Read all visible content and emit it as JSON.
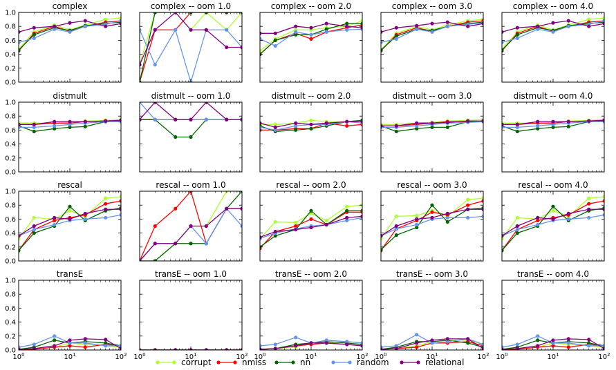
{
  "figure": {
    "legend": [
      {
        "label": "corrupt",
        "color": "#adff2f"
      },
      {
        "label": "nmiss",
        "color": "#ff0000"
      },
      {
        "label": "nn",
        "color": "#006400"
      },
      {
        "label": "random",
        "color": "#6495ed"
      },
      {
        "label": "relational",
        "color": "#800080"
      }
    ]
  },
  "chart_data": {
    "type": "line",
    "x": [
      1,
      2,
      5,
      10,
      20,
      50,
      100
    ],
    "xscale": "log",
    "xlim": [
      1,
      100
    ],
    "xticks": [
      "10^0",
      "10^1",
      "10^2"
    ],
    "ylim": [
      0,
      1
    ],
    "yticks": [
      "0.0",
      "0.2",
      "0.4",
      "0.6",
      "0.8",
      "1.0"
    ],
    "grid": false,
    "legend_position": "bottom-center",
    "series_names": [
      "corrupt",
      "nmiss",
      "nn",
      "random",
      "relational"
    ],
    "panels": [
      {
        "title": "complex",
        "series": [
          [
            0.47,
            0.72,
            0.82,
            0.75,
            0.82,
            0.9,
            0.92
          ],
          [
            0.45,
            0.7,
            0.8,
            0.73,
            0.8,
            0.86,
            0.88
          ],
          [
            0.46,
            0.68,
            0.78,
            0.74,
            0.81,
            0.84,
            0.86
          ],
          [
            0.57,
            0.63,
            0.76,
            0.72,
            0.8,
            0.83,
            0.88
          ],
          [
            0.72,
            0.78,
            0.8,
            0.85,
            0.88,
            0.8,
            0.84
          ]
        ]
      },
      {
        "title": "complex -- oom 1.0",
        "series": [
          [
            0.25,
            1.0,
            1.0,
            0.75,
            1.0,
            0.75,
            1.0
          ],
          [
            0.0,
            0.75,
            0.75,
            1.0,
            1.0,
            1.0,
            1.0
          ],
          [
            0.0,
            1.0,
            1.0,
            1.0,
            1.0,
            1.0,
            1.0
          ],
          [
            0.75,
            0.25,
            0.75,
            0.0,
            0.75,
            0.75,
            0.5
          ],
          [
            0.25,
            0.75,
            1.0,
            0.75,
            0.75,
            0.5,
            0.5
          ]
        ]
      },
      {
        "title": "complex -- oom 2.0",
        "series": [
          [
            0.45,
            0.62,
            0.75,
            0.75,
            0.78,
            0.8,
            0.88
          ],
          [
            0.4,
            0.6,
            0.7,
            0.62,
            0.72,
            0.78,
            0.82
          ],
          [
            0.4,
            0.6,
            0.68,
            0.68,
            0.76,
            0.84,
            0.84
          ],
          [
            0.62,
            0.52,
            0.72,
            0.68,
            0.72,
            0.75,
            0.76
          ],
          [
            0.7,
            0.7,
            0.8,
            0.78,
            0.84,
            0.8,
            0.78
          ]
        ]
      },
      {
        "title": "complex -- oom 3.0",
        "series": [
          [
            0.46,
            0.7,
            0.8,
            0.75,
            0.82,
            0.88,
            0.9
          ],
          [
            0.45,
            0.68,
            0.78,
            0.73,
            0.8,
            0.86,
            0.88
          ],
          [
            0.46,
            0.66,
            0.76,
            0.74,
            0.8,
            0.84,
            0.86
          ],
          [
            0.57,
            0.62,
            0.76,
            0.72,
            0.8,
            0.83,
            0.85
          ],
          [
            0.72,
            0.78,
            0.81,
            0.84,
            0.86,
            0.8,
            0.84
          ]
        ]
      },
      {
        "title": "complex -- oom 4.0",
        "series": [
          [
            0.47,
            0.72,
            0.82,
            0.75,
            0.82,
            0.9,
            0.92
          ],
          [
            0.45,
            0.7,
            0.8,
            0.73,
            0.8,
            0.86,
            0.88
          ],
          [
            0.46,
            0.68,
            0.78,
            0.74,
            0.81,
            0.84,
            0.86
          ],
          [
            0.57,
            0.63,
            0.76,
            0.72,
            0.8,
            0.83,
            0.88
          ],
          [
            0.72,
            0.78,
            0.8,
            0.85,
            0.88,
            0.8,
            0.84
          ]
        ]
      },
      {
        "title": "distmult",
        "series": [
          [
            0.7,
            0.7,
            0.7,
            0.71,
            0.73,
            0.74,
            0.75
          ],
          [
            0.68,
            0.68,
            0.7,
            0.7,
            0.72,
            0.73,
            0.74
          ],
          [
            0.66,
            0.58,
            0.62,
            0.64,
            0.65,
            0.72,
            0.73
          ],
          [
            0.64,
            0.64,
            0.66,
            0.68,
            0.7,
            0.72,
            0.72
          ],
          [
            0.68,
            0.68,
            0.72,
            0.72,
            0.72,
            0.73,
            0.74
          ]
        ]
      },
      {
        "title": "distmult -- oom 1.0",
        "series": [
          [
            0.75,
            0.75,
            0.75,
            0.75,
            0.75,
            0.75,
            0.75
          ],
          [
            0.75,
            0.75,
            0.75,
            0.75,
            0.75,
            0.75,
            0.75
          ],
          [
            0.75,
            0.75,
            0.5,
            0.5,
            0.75,
            0.75,
            0.75
          ],
          [
            1.0,
            0.75,
            0.75,
            0.75,
            0.75,
            0.75,
            0.75
          ],
          [
            0.75,
            1.0,
            0.75,
            0.75,
            1.0,
            0.75,
            0.75
          ]
        ]
      },
      {
        "title": "distmult -- oom 2.0",
        "series": [
          [
            0.68,
            0.68,
            0.7,
            0.74,
            0.72,
            0.72,
            0.74
          ],
          [
            0.6,
            0.6,
            0.62,
            0.62,
            0.7,
            0.66,
            0.68
          ],
          [
            0.66,
            0.58,
            0.6,
            0.62,
            0.66,
            0.72,
            0.74
          ],
          [
            0.64,
            0.6,
            0.66,
            0.68,
            0.68,
            0.72,
            0.7
          ],
          [
            0.7,
            0.64,
            0.7,
            0.68,
            0.7,
            0.72,
            0.72
          ]
        ]
      },
      {
        "title": "distmult -- oom 3.0",
        "series": [
          [
            0.68,
            0.68,
            0.7,
            0.71,
            0.73,
            0.74,
            0.75
          ],
          [
            0.66,
            0.66,
            0.68,
            0.7,
            0.72,
            0.72,
            0.73
          ],
          [
            0.66,
            0.58,
            0.62,
            0.64,
            0.64,
            0.72,
            0.73
          ],
          [
            0.64,
            0.64,
            0.66,
            0.68,
            0.7,
            0.71,
            0.72
          ],
          [
            0.66,
            0.66,
            0.7,
            0.7,
            0.71,
            0.73,
            0.73
          ]
        ]
      },
      {
        "title": "distmult -- oom 4.0",
        "series": [
          [
            0.7,
            0.7,
            0.7,
            0.71,
            0.73,
            0.74,
            0.75
          ],
          [
            0.68,
            0.68,
            0.7,
            0.7,
            0.72,
            0.73,
            0.74
          ],
          [
            0.66,
            0.58,
            0.62,
            0.64,
            0.65,
            0.72,
            0.73
          ],
          [
            0.64,
            0.64,
            0.66,
            0.68,
            0.7,
            0.72,
            0.72
          ],
          [
            0.68,
            0.68,
            0.72,
            0.72,
            0.72,
            0.73,
            0.74
          ]
        ]
      },
      {
        "title": "rescal",
        "series": [
          [
            0.32,
            0.62,
            0.6,
            0.72,
            0.64,
            0.9,
            0.92
          ],
          [
            0.15,
            0.45,
            0.58,
            0.62,
            0.66,
            0.82,
            0.86
          ],
          [
            0.15,
            0.4,
            0.5,
            0.78,
            0.58,
            0.72,
            0.76
          ],
          [
            0.36,
            0.45,
            0.52,
            0.58,
            0.6,
            0.62,
            0.66
          ],
          [
            0.36,
            0.5,
            0.62,
            0.6,
            0.68,
            0.74,
            0.74
          ]
        ]
      },
      {
        "title": "rescal -- oom 1.0",
        "series": [
          [
            0.0,
            0.0,
            0.25,
            0.5,
            0.5,
            1.0,
            1.0
          ],
          [
            0.0,
            0.5,
            0.75,
            1.0,
            0.25,
            0.75,
            0.75
          ],
          [
            0.0,
            0.0,
            0.25,
            0.25,
            0.25,
            0.75,
            1.0
          ],
          [
            0.0,
            0.25,
            0.25,
            0.5,
            0.25,
            0.75,
            0.5
          ],
          [
            0.0,
            0.25,
            0.25,
            0.5,
            0.5,
            0.75,
            0.75
          ]
        ]
      },
      {
        "title": "rescal -- oom 2.0",
        "series": [
          [
            0.32,
            0.56,
            0.55,
            0.68,
            0.58,
            0.78,
            0.8
          ],
          [
            0.18,
            0.42,
            0.5,
            0.6,
            0.52,
            0.7,
            0.7
          ],
          [
            0.2,
            0.36,
            0.45,
            0.72,
            0.52,
            0.72,
            0.72
          ],
          [
            0.32,
            0.4,
            0.46,
            0.5,
            0.52,
            0.58,
            0.62
          ],
          [
            0.34,
            0.42,
            0.45,
            0.48,
            0.52,
            0.62,
            0.64
          ]
        ]
      },
      {
        "title": "rescal -- oom 3.0",
        "series": [
          [
            0.32,
            0.64,
            0.65,
            0.72,
            0.64,
            0.88,
            0.9
          ],
          [
            0.15,
            0.46,
            0.58,
            0.7,
            0.66,
            0.8,
            0.86
          ],
          [
            0.16,
            0.37,
            0.48,
            0.8,
            0.56,
            0.74,
            0.76
          ],
          [
            0.36,
            0.46,
            0.52,
            0.6,
            0.62,
            0.62,
            0.64
          ],
          [
            0.36,
            0.5,
            0.6,
            0.62,
            0.68,
            0.74,
            0.74
          ]
        ]
      },
      {
        "title": "rescal -- oom 4.0",
        "series": [
          [
            0.32,
            0.62,
            0.6,
            0.72,
            0.64,
            0.9,
            0.92
          ],
          [
            0.15,
            0.45,
            0.58,
            0.62,
            0.66,
            0.82,
            0.86
          ],
          [
            0.15,
            0.4,
            0.5,
            0.78,
            0.58,
            0.72,
            0.76
          ],
          [
            0.36,
            0.45,
            0.52,
            0.58,
            0.6,
            0.62,
            0.66
          ],
          [
            0.36,
            0.5,
            0.62,
            0.6,
            0.68,
            0.74,
            0.74
          ]
        ]
      },
      {
        "title": "transE",
        "series": [
          [
            0.01,
            0.02,
            0.04,
            0.1,
            0.08,
            0.06,
            0.04
          ],
          [
            0.01,
            0.01,
            0.04,
            0.06,
            0.04,
            0.08,
            0.06
          ],
          [
            0.01,
            0.04,
            0.14,
            0.1,
            0.12,
            0.1,
            0.06
          ],
          [
            0.04,
            0.08,
            0.2,
            0.1,
            0.1,
            0.06,
            0.06
          ],
          [
            0.01,
            0.02,
            0.06,
            0.14,
            0.16,
            0.15,
            0.02
          ]
        ]
      },
      {
        "title": "transE -- oom 1.0",
        "series": [
          [
            0.0,
            0.0,
            0.0,
            0.0,
            0.0,
            0.0,
            0.0
          ],
          [
            0.0,
            0.0,
            0.0,
            0.0,
            0.0,
            0.0,
            0.0
          ],
          [
            0.0,
            0.0,
            0.0,
            0.0,
            0.0,
            0.0,
            0.0
          ],
          [
            0.0,
            0.0,
            0.0,
            0.0,
            0.0,
            0.0,
            0.0
          ],
          [
            0.0,
            0.0,
            0.0,
            0.0,
            0.0,
            0.0,
            0.0
          ]
        ]
      },
      {
        "title": "transE -- oom 2.0",
        "series": [
          [
            0.01,
            0.02,
            0.04,
            0.1,
            0.1,
            0.12,
            0.1
          ],
          [
            0.01,
            0.02,
            0.06,
            0.08,
            0.1,
            0.08,
            0.06
          ],
          [
            0.01,
            0.02,
            0.08,
            0.1,
            0.12,
            0.1,
            0.08
          ],
          [
            0.06,
            0.08,
            0.18,
            0.1,
            0.14,
            0.12,
            0.1
          ],
          [
            0.01,
            0.02,
            0.06,
            0.1,
            0.1,
            0.08,
            0.06
          ]
        ]
      },
      {
        "title": "transE -- oom 3.0",
        "series": [
          [
            0.01,
            0.02,
            0.06,
            0.12,
            0.14,
            0.14,
            0.08
          ],
          [
            0.01,
            0.02,
            0.04,
            0.1,
            0.1,
            0.12,
            0.06
          ],
          [
            0.01,
            0.04,
            0.12,
            0.12,
            0.14,
            0.1,
            0.04
          ],
          [
            0.04,
            0.06,
            0.22,
            0.1,
            0.12,
            0.16,
            0.08
          ],
          [
            0.01,
            0.02,
            0.1,
            0.14,
            0.16,
            0.16,
            0.02
          ]
        ]
      },
      {
        "title": "transE -- oom 4.0",
        "series": [
          [
            0.01,
            0.02,
            0.04,
            0.1,
            0.08,
            0.06,
            0.04
          ],
          [
            0.01,
            0.01,
            0.04,
            0.06,
            0.04,
            0.08,
            0.06
          ],
          [
            0.01,
            0.04,
            0.14,
            0.1,
            0.12,
            0.1,
            0.06
          ],
          [
            0.04,
            0.08,
            0.2,
            0.1,
            0.1,
            0.06,
            0.06
          ],
          [
            0.01,
            0.02,
            0.06,
            0.14,
            0.16,
            0.15,
            0.02
          ]
        ]
      }
    ]
  }
}
